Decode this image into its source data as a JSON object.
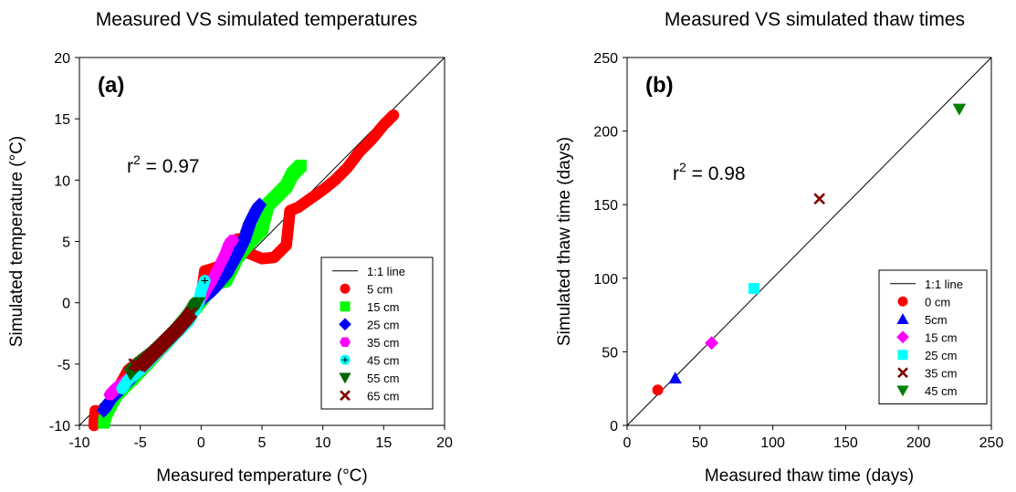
{
  "chart_data": [
    {
      "type": "scatter",
      "title": "Measured VS simulated temperatures",
      "panel_label": "(a)",
      "annotation": {
        "r2_prefix": "r",
        "r2_sup": "2",
        "r2_value": " = 0.97"
      },
      "xlabel": "Measured temperature (°C)",
      "ylabel": "Simulated temperature (°C)",
      "xlim": [
        -10,
        20
      ],
      "ylim": [
        -10,
        20
      ],
      "xticks": [
        -10,
        -5,
        0,
        5,
        10,
        15,
        20
      ],
      "yticks": [
        -10,
        -5,
        0,
        5,
        10,
        15,
        20
      ],
      "legend_placement": "bottom-right",
      "reference_line": {
        "name": "1:1 line",
        "points": [
          [
            -10,
            -10
          ],
          [
            20,
            20
          ]
        ]
      },
      "series": [
        {
          "name": "5 cm",
          "color": "#ff0000",
          "marker": "circle",
          "points": [
            [
              -8.8,
              -10
            ],
            [
              -8.7,
              -8.8
            ],
            [
              -8.2,
              -9.5
            ],
            [
              -6,
              -5.5
            ],
            [
              -3,
              -3.2
            ],
            [
              -1,
              -1.2
            ],
            [
              0,
              0.5
            ],
            [
              0.3,
              2.6
            ],
            [
              1,
              2.8
            ],
            [
              2,
              3.2
            ],
            [
              2.5,
              4.5
            ],
            [
              3,
              5.2
            ],
            [
              3.5,
              4.8
            ],
            [
              4,
              4
            ],
            [
              5,
              3.6
            ],
            [
              6,
              3.7
            ],
            [
              7,
              4.7
            ],
            [
              7.3,
              7.5
            ],
            [
              8,
              7.8
            ],
            [
              9,
              8.5
            ],
            [
              10,
              9.2
            ],
            [
              11,
              10
            ],
            [
              12,
              11
            ],
            [
              13,
              12.3
            ],
            [
              14,
              13.3
            ],
            [
              15,
              14.5
            ],
            [
              15.8,
              15.3
            ]
          ]
        },
        {
          "name": "15 cm",
          "color": "#00ff00",
          "marker": "square",
          "points": [
            [
              -8,
              -9.8
            ],
            [
              -7.8,
              -9
            ],
            [
              -7,
              -7.5
            ],
            [
              -5,
              -5.5
            ],
            [
              -2.5,
              -2.8
            ],
            [
              0,
              0.2
            ],
            [
              1,
              1.5
            ],
            [
              2,
              1.8
            ],
            [
              3,
              3.8
            ],
            [
              4,
              5
            ],
            [
              5,
              6
            ],
            [
              5.5,
              8
            ],
            [
              6,
              8.5
            ],
            [
              7,
              9.5
            ],
            [
              7.5,
              10.5
            ],
            [
              8.2,
              11.2
            ]
          ]
        },
        {
          "name": "25 cm",
          "color": "#0000ff",
          "marker": "diamond",
          "points": [
            [
              -8,
              -8.8
            ],
            [
              -7.5,
              -8
            ],
            [
              -6,
              -6.5
            ],
            [
              -4,
              -4.2
            ],
            [
              -2,
              -2.5
            ],
            [
              0,
              0.2
            ],
            [
              1,
              1
            ],
            [
              2,
              2.2
            ],
            [
              3,
              4
            ],
            [
              3.5,
              5
            ],
            [
              4,
              6.5
            ],
            [
              4.5,
              7.5
            ],
            [
              4.8,
              8
            ]
          ]
        },
        {
          "name": "35 cm",
          "color": "#ff00ff",
          "marker": "hexagon",
          "points": [
            [
              -7.5,
              -7.5
            ],
            [
              -7,
              -7
            ],
            [
              -5,
              -5.5
            ],
            [
              -3,
              -3.5
            ],
            [
              -1,
              -1.2
            ],
            [
              0,
              0.3
            ],
            [
              1,
              2
            ],
            [
              2,
              4
            ],
            [
              2.3,
              4.8
            ],
            [
              2.6,
              5.1
            ]
          ]
        },
        {
          "name": "45 cm",
          "color": "#00ffff",
          "marker": "crosshair-circle",
          "points": [
            [
              -6.5,
              -7
            ],
            [
              -6,
              -6.3
            ],
            [
              -5,
              -5.5
            ],
            [
              -3,
              -3.5
            ],
            [
              -1,
              -1.5
            ],
            [
              -0.2,
              0
            ],
            [
              0,
              1
            ],
            [
              0.3,
              1.8
            ]
          ]
        },
        {
          "name": "55 cm",
          "color": "#006400",
          "marker": "triangle-down",
          "points": [
            [
              -5.8,
              -5.8
            ],
            [
              -5.3,
              -5.2
            ],
            [
              -4,
              -4.2
            ],
            [
              -2.5,
              -2.8
            ],
            [
              -1.2,
              -1.5
            ],
            [
              -0.5,
              -0.3
            ],
            [
              -0.2,
              0
            ]
          ]
        },
        {
          "name": "65 cm",
          "color": "#800000",
          "marker": "x",
          "points": [
            [
              -5.5,
              -5
            ],
            [
              -5,
              -5.2
            ],
            [
              -4,
              -4.2
            ],
            [
              -3,
              -3.2
            ],
            [
              -2,
              -2.2
            ],
            [
              -1.2,
              -1.3
            ],
            [
              -0.8,
              -0.8
            ]
          ]
        }
      ]
    },
    {
      "type": "scatter",
      "title": "Measured VS simulated thaw times",
      "panel_label": "(b)",
      "annotation": {
        "r2_prefix": "r",
        "r2_sup": "2",
        "r2_value": " = 0.98"
      },
      "xlabel": "Measured thaw time (days)",
      "ylabel": "Simulated thaw time (days)",
      "xlim": [
        0,
        250
      ],
      "ylim": [
        0,
        250
      ],
      "xticks": [
        0,
        50,
        100,
        150,
        200,
        250
      ],
      "yticks": [
        0,
        50,
        100,
        150,
        200,
        250
      ],
      "legend_placement": "bottom-right",
      "reference_line": {
        "name": "1:1 line",
        "points": [
          [
            0,
            0
          ],
          [
            250,
            250
          ]
        ]
      },
      "series": [
        {
          "name": "0 cm",
          "color": "#ff0000",
          "marker": "circle",
          "points": [
            [
              21,
              24
            ]
          ]
        },
        {
          "name": "5cm",
          "color": "#0000ff",
          "marker": "triangle-up",
          "points": [
            [
              33,
              32
            ]
          ]
        },
        {
          "name": "15 cm",
          "color": "#ff00ff",
          "marker": "diamond",
          "points": [
            [
              58,
              56
            ]
          ]
        },
        {
          "name": "25 cm",
          "color": "#00ffff",
          "marker": "square",
          "points": [
            [
              87,
              93
            ]
          ]
        },
        {
          "name": "35 cm",
          "color": "#800000",
          "marker": "x",
          "points": [
            [
              132,
              154
            ]
          ]
        },
        {
          "name": "45 cm",
          "color": "#008000",
          "marker": "triangle-down",
          "points": [
            [
              228,
              215
            ]
          ]
        }
      ]
    }
  ]
}
